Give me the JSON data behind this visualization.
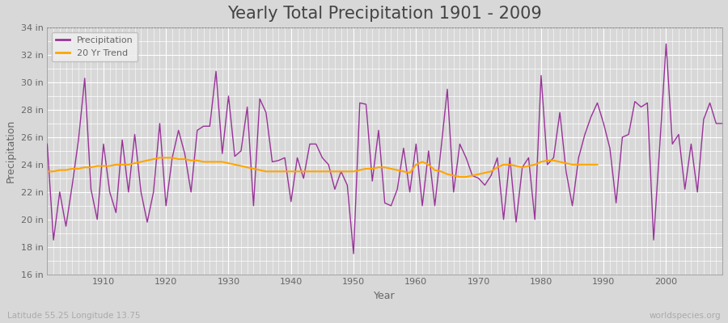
{
  "title": "Yearly Total Precipitation 1901 - 2009",
  "xlabel": "Year",
  "ylabel": "Precipitation",
  "subtitle_lat_lon": "Latitude 55.25 Longitude 13.75",
  "watermark": "worldspecies.org",
  "ylim": [
    16,
    34
  ],
  "yticks": [
    16,
    18,
    20,
    22,
    24,
    26,
    28,
    30,
    32,
    34
  ],
  "ytick_labels": [
    "16 in",
    "18 in",
    "20 in",
    "22 in",
    "24 in",
    "26 in",
    "28 in",
    "30 in",
    "32 in",
    "34 in"
  ],
  "years": [
    1901,
    1902,
    1903,
    1904,
    1905,
    1906,
    1907,
    1908,
    1909,
    1910,
    1911,
    1912,
    1913,
    1914,
    1915,
    1916,
    1917,
    1918,
    1919,
    1920,
    1921,
    1922,
    1923,
    1924,
    1925,
    1926,
    1927,
    1928,
    1929,
    1930,
    1931,
    1932,
    1933,
    1934,
    1935,
    1936,
    1937,
    1938,
    1939,
    1940,
    1941,
    1942,
    1943,
    1944,
    1945,
    1946,
    1947,
    1948,
    1949,
    1950,
    1951,
    1952,
    1953,
    1954,
    1955,
    1956,
    1957,
    1958,
    1959,
    1960,
    1961,
    1962,
    1963,
    1964,
    1965,
    1966,
    1967,
    1968,
    1969,
    1970,
    1971,
    1972,
    1973,
    1974,
    1975,
    1976,
    1977,
    1978,
    1979,
    1980,
    1981,
    1982,
    1983,
    1984,
    1985,
    1986,
    1987,
    1988,
    1989,
    1990,
    1991,
    1992,
    1993,
    1994,
    1995,
    1996,
    1997,
    1998,
    1999,
    2000,
    2001,
    2002,
    2003,
    2004,
    2005,
    2006,
    2007,
    2008,
    2009
  ],
  "precipitation": [
    25.5,
    18.5,
    22.0,
    19.5,
    22.5,
    25.8,
    30.3,
    22.2,
    20.0,
    25.5,
    22.0,
    20.5,
    25.8,
    22.0,
    26.2,
    22.0,
    19.8,
    22.0,
    27.0,
    21.0,
    24.5,
    26.5,
    24.8,
    22.0,
    26.5,
    26.8,
    26.8,
    30.8,
    24.8,
    29.0,
    24.6,
    25.0,
    28.2,
    21.0,
    28.8,
    27.8,
    24.2,
    24.3,
    24.5,
    21.3,
    24.5,
    23.0,
    25.5,
    25.5,
    24.5,
    24.0,
    22.2,
    23.5,
    22.5,
    17.5,
    28.5,
    28.4,
    22.8,
    26.5,
    21.2,
    21.0,
    22.2,
    25.2,
    22.0,
    25.5,
    21.0,
    25.0,
    21.0,
    25.2,
    29.5,
    22.0,
    25.5,
    24.5,
    23.2,
    23.0,
    22.5,
    23.2,
    24.5,
    20.0,
    24.5,
    19.8,
    23.8,
    24.5,
    20.0,
    30.5,
    24.0,
    24.5,
    27.8,
    23.5,
    21.0,
    24.5,
    26.2,
    27.5,
    28.5,
    27.0,
    25.2,
    21.2,
    26.0,
    26.2,
    28.6,
    28.2,
    28.5,
    18.5,
    25.5,
    32.8,
    25.5,
    26.2,
    22.2,
    25.5,
    22.0,
    27.3,
    28.5,
    27.0,
    27.0
  ],
  "trend_years": [
    1901,
    1902,
    1903,
    1904,
    1905,
    1906,
    1907,
    1908,
    1909,
    1910,
    1911,
    1912,
    1913,
    1914,
    1915,
    1916,
    1917,
    1918,
    1919,
    1920,
    1921,
    1922,
    1923,
    1924,
    1925,
    1926,
    1927,
    1928,
    1929,
    1930,
    1931,
    1932,
    1933,
    1934,
    1935,
    1936,
    1937,
    1938,
    1939,
    1940,
    1941,
    1942,
    1943,
    1944,
    1945,
    1946,
    1947,
    1948,
    1949,
    1950,
    1951,
    1952,
    1953,
    1954,
    1955,
    1956,
    1957,
    1958,
    1959,
    1960,
    1961,
    1962,
    1963,
    1964,
    1965,
    1966,
    1967,
    1968,
    1969,
    1970,
    1971,
    1972,
    1973,
    1974,
    1975,
    1976,
    1977,
    1978,
    1979,
    1980,
    1981,
    1982,
    1983,
    1984,
    1985,
    1986,
    1987,
    1988,
    1989
  ],
  "trend": [
    23.5,
    23.5,
    23.6,
    23.6,
    23.7,
    23.7,
    23.8,
    23.8,
    23.9,
    23.9,
    23.9,
    24.0,
    24.0,
    24.0,
    24.1,
    24.2,
    24.3,
    24.4,
    24.5,
    24.5,
    24.5,
    24.4,
    24.4,
    24.3,
    24.3,
    24.2,
    24.2,
    24.2,
    24.2,
    24.1,
    24.0,
    23.9,
    23.8,
    23.7,
    23.6,
    23.5,
    23.5,
    23.5,
    23.5,
    23.5,
    23.5,
    23.5,
    23.5,
    23.5,
    23.5,
    23.5,
    23.5,
    23.5,
    23.5,
    23.5,
    23.6,
    23.7,
    23.7,
    23.8,
    23.8,
    23.7,
    23.6,
    23.5,
    23.4,
    24.0,
    24.2,
    24.0,
    23.6,
    23.5,
    23.3,
    23.2,
    23.1,
    23.1,
    23.2,
    23.3,
    23.4,
    23.5,
    23.8,
    24.0,
    24.0,
    23.9,
    23.8,
    23.9,
    24.0,
    24.2,
    24.3,
    24.3,
    24.2,
    24.1,
    24.0,
    24.0,
    24.0,
    24.0,
    24.0
  ],
  "precip_color": "#993399",
  "trend_color": "#FFA500",
  "bg_color": "#D8D8D8",
  "plot_bg_color": "#D8D8D8",
  "grid_color": "#FFFFFF",
  "title_fontsize": 15,
  "axis_fontsize": 9,
  "tick_fontsize": 8,
  "label_color": "#666666",
  "title_color": "#444444"
}
